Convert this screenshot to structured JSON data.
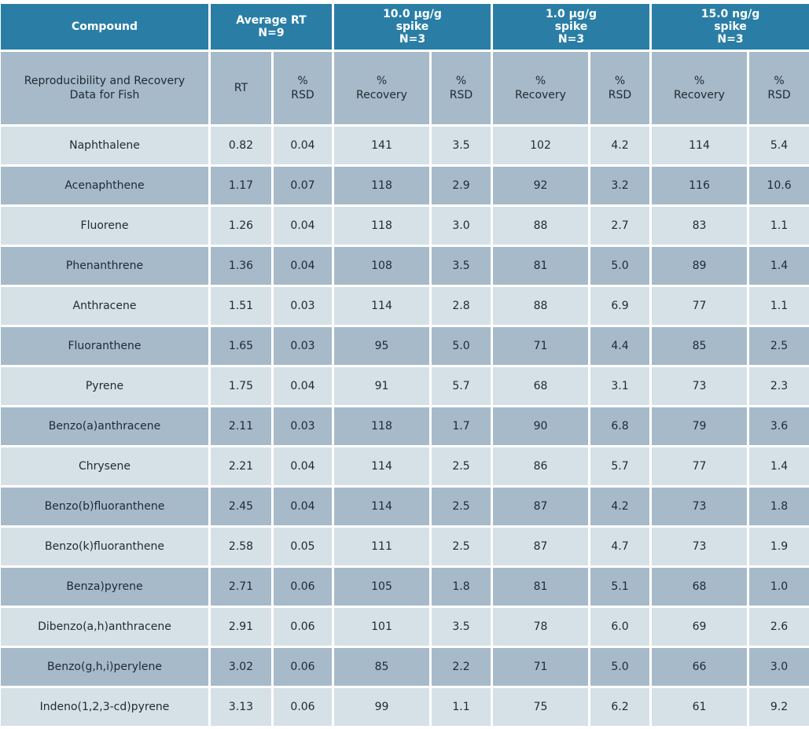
{
  "header": {
    "compound": "Compound",
    "avg_rt": "Average RT\nN=9",
    "spike1": "10.0 µg/g\nspike\nN=3",
    "spike2": "1.0 µg/g\nspike\nN=3",
    "spike3": "15.0 ng/g\nspike\nN=3"
  },
  "subheader": {
    "desc": "Reproducibility and Recovery\nData for Fish",
    "rt": "RT",
    "rsd": "%\nRSD",
    "recovery": "%\nRecovery"
  },
  "rows": [
    {
      "compound": "Naphthalene",
      "rt": "0.82",
      "rt_rsd": "0.04",
      "r1": "141",
      "s1": "3.5",
      "r2": "102",
      "s2": "4.2",
      "r3": "114",
      "s3": "5.4"
    },
    {
      "compound": "Acenaphthene",
      "rt": "1.17",
      "rt_rsd": "0.07",
      "r1": "118",
      "s1": "2.9",
      "r2": "92",
      "s2": "3.2",
      "r3": "116",
      "s3": "10.6"
    },
    {
      "compound": "Fluorene",
      "rt": "1.26",
      "rt_rsd": "0.04",
      "r1": "118",
      "s1": "3.0",
      "r2": "88",
      "s2": "2.7",
      "r3": "83",
      "s3": "1.1"
    },
    {
      "compound": "Phenanthrene",
      "rt": "1.36",
      "rt_rsd": "0.04",
      "r1": "108",
      "s1": "3.5",
      "r2": "81",
      "s2": "5.0",
      "r3": "89",
      "s3": "1.4"
    },
    {
      "compound": "Anthracene",
      "rt": "1.51",
      "rt_rsd": "0.03",
      "r1": "114",
      "s1": "2.8",
      "r2": "88",
      "s2": "6.9",
      "r3": "77",
      "s3": "1.1"
    },
    {
      "compound": "Fluoranthene",
      "rt": "1.65",
      "rt_rsd": "0.03",
      "r1": "95",
      "s1": "5.0",
      "r2": "71",
      "s2": "4.4",
      "r3": "85",
      "s3": "2.5"
    },
    {
      "compound": "Pyrene",
      "rt": "1.75",
      "rt_rsd": "0.04",
      "r1": "91",
      "s1": "5.7",
      "r2": "68",
      "s2": "3.1",
      "r3": "73",
      "s3": "2.3"
    },
    {
      "compound": "Benzo(a)anthracene",
      "rt": "2.11",
      "rt_rsd": "0.03",
      "r1": "118",
      "s1": "1.7",
      "r2": "90",
      "s2": "6.8",
      "r3": "79",
      "s3": "3.6"
    },
    {
      "compound": "Chrysene",
      "rt": "2.21",
      "rt_rsd": "0.04",
      "r1": "114",
      "s1": "2.5",
      "r2": "86",
      "s2": "5.7",
      "r3": "77",
      "s3": "1.4"
    },
    {
      "compound": "Benzo(b)fluoranthene",
      "rt": "2.45",
      "rt_rsd": "0.04",
      "r1": "114",
      "s1": "2.5",
      "r2": "87",
      "s2": "4.2",
      "r3": "73",
      "s3": "1.8"
    },
    {
      "compound": "Benzo(k)fluoranthene",
      "rt": "2.58",
      "rt_rsd": "0.05",
      "r1": "111",
      "s1": "2.5",
      "r2": "87",
      "s2": "4.7",
      "r3": "73",
      "s3": "1.9"
    },
    {
      "compound": "Benza)pyrene",
      "rt": "2.71",
      "rt_rsd": "0.06",
      "r1": "105",
      "s1": "1.8",
      "r2": "81",
      "s2": "5.1",
      "r3": "68",
      "s3": "1.0"
    },
    {
      "compound": "Dibenzo(a,h)anthracene",
      "rt": "2.91",
      "rt_rsd": "0.06",
      "r1": "101",
      "s1": "3.5",
      "r2": "78",
      "s2": "6.0",
      "r3": "69",
      "s3": "2.6"
    },
    {
      "compound": "Benzo(g,h,i)perylene",
      "rt": "3.02",
      "rt_rsd": "0.06",
      "r1": "85",
      "s1": "2.2",
      "r2": "71",
      "s2": "5.0",
      "r3": "66",
      "s3": "3.0"
    },
    {
      "compound": "Indeno(1,2,3-cd)pyrene",
      "rt": "3.13",
      "rt_rsd": "0.06",
      "r1": "99",
      "s1": "1.1",
      "r2": "75",
      "s2": "6.2",
      "r3": "61",
      "s3": "9.2"
    }
  ]
}
